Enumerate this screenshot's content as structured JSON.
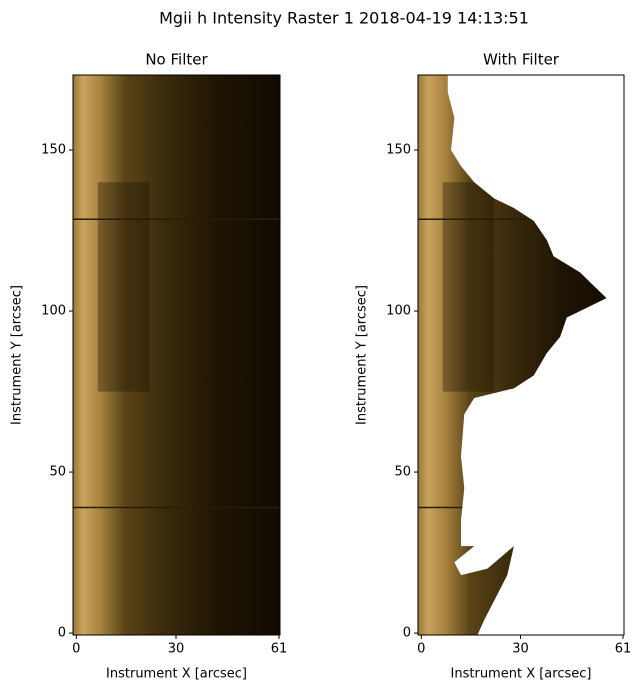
{
  "title": "Mgii h Intensity Raster 1 2018-04-19 14:13:51",
  "chart_data": [
    {
      "type": "image",
      "title": "No Filter",
      "xlabel": "Instrument X [arcsec]",
      "ylabel": "Instrument Y [arcsec]",
      "xlim": [
        -1,
        61.3
      ],
      "ylim": [
        -0.6,
        173.3
      ],
      "xticks": [
        0,
        30,
        61
      ],
      "yticks": [
        0,
        50,
        100,
        150
      ],
      "filtered": false
    },
    {
      "type": "image",
      "title": "With Filter",
      "xlabel": "Instrument X [arcsec]",
      "ylabel": "Instrument Y [arcsec]",
      "xlim": [
        -1,
        61.3
      ],
      "ylim": [
        -0.6,
        173.3
      ],
      "xticks": [
        0,
        30,
        61
      ],
      "yticks": [
        0,
        50,
        100,
        150
      ],
      "filtered": true
    }
  ]
}
